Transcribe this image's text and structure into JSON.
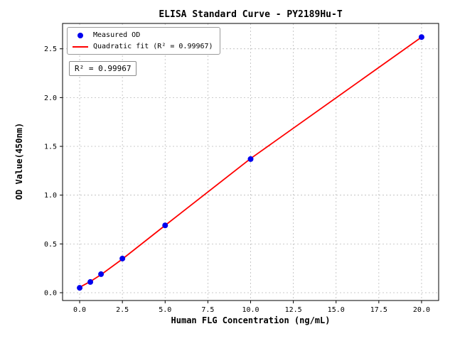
{
  "chart_data": {
    "type": "scatter",
    "title": "ELISA Standard Curve - PY2189Hu-T",
    "xlabel": "Human FLG Concentration (ng/mL)",
    "ylabel": "OD Value(450nm)",
    "xlim": [
      -1,
      21
    ],
    "ylim": [
      -0.08,
      2.76
    ],
    "xtick_values": [
      0,
      2.5,
      5,
      7.5,
      10,
      12.5,
      15,
      17.5,
      20
    ],
    "xtick_labels": [
      "0.0",
      "2.5",
      "5.0",
      "7.5",
      "10.0",
      "12.5",
      "15.0",
      "17.5",
      "20.0"
    ],
    "ytick_values": [
      0,
      0.5,
      1,
      1.5,
      2,
      2.5
    ],
    "ytick_labels": [
      "0.0",
      "0.5",
      "1.0",
      "1.5",
      "2.0",
      "2.5"
    ],
    "grid": true,
    "grid_color": "#bbbbbb",
    "spine_color": "#000000",
    "series": [
      {
        "name": "Measured OD",
        "type": "scatter",
        "color": "#0000ee",
        "x": [
          0,
          0.625,
          1.25,
          2.5,
          5,
          10,
          20
        ],
        "y": [
          0.05,
          0.11,
          0.19,
          0.35,
          0.69,
          1.37,
          2.62
        ]
      },
      {
        "name": "Quadratic fit (R² = 0.99967)",
        "type": "line",
        "color": "#ff0000",
        "x": [
          0,
          0.625,
          1.25,
          2.5,
          5,
          10,
          20
        ],
        "y": [
          0.055,
          0.115,
          0.185,
          0.345,
          0.69,
          1.375,
          2.62
        ]
      }
    ],
    "legend_position": "upper-left",
    "annotation": "R² = 0.99967"
  }
}
